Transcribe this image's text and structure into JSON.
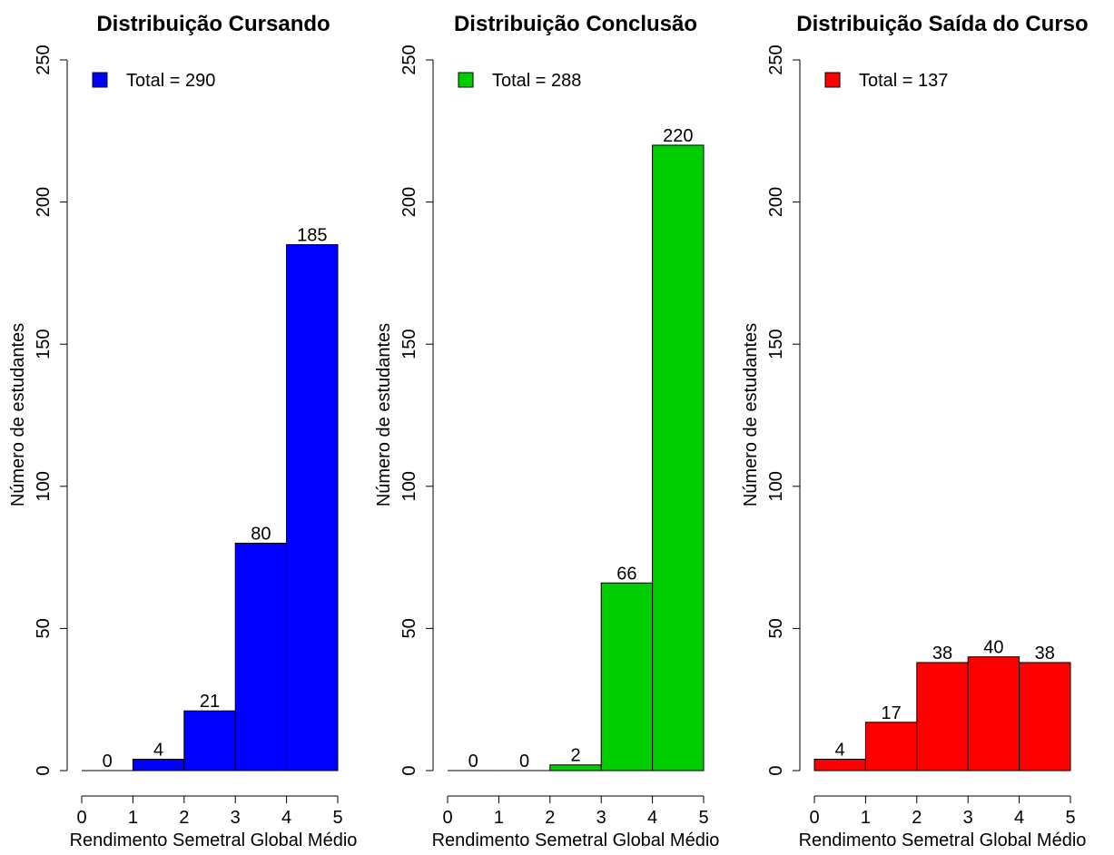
{
  "chart_data": [
    {
      "type": "bar",
      "title": "Distribuição Cursando",
      "xlabel": "Rendimento Semetral Global Médio",
      "ylabel": "Número de estudantes",
      "bins": [
        [
          0,
          1
        ],
        [
          1,
          2
        ],
        [
          2,
          3
        ],
        [
          3,
          4
        ],
        [
          4,
          5
        ]
      ],
      "values": [
        0,
        4,
        21,
        80,
        185
      ],
      "data_labels": [
        "0",
        "4",
        "21",
        "80",
        "185"
      ],
      "xticks": [
        "0",
        "1",
        "2",
        "3",
        "4",
        "5"
      ],
      "yticks": [
        "0",
        "50",
        "100",
        "150",
        "200",
        "250"
      ],
      "xlim": [
        0,
        5
      ],
      "ylim": [
        0,
        250
      ],
      "color": "#0000ff",
      "legend": {
        "label": "Total = 290",
        "position": "top-left"
      },
      "grid": false
    },
    {
      "type": "bar",
      "title": "Distribuição Conclusão",
      "xlabel": "Rendimento Semetral Global Médio",
      "ylabel": "Número de estudantes",
      "bins": [
        [
          0,
          1
        ],
        [
          1,
          2
        ],
        [
          2,
          3
        ],
        [
          3,
          4
        ],
        [
          4,
          5
        ]
      ],
      "values": [
        0,
        0,
        2,
        66,
        220
      ],
      "data_labels": [
        "0",
        "0",
        "2",
        "66",
        "220"
      ],
      "xticks": [
        "0",
        "1",
        "2",
        "3",
        "4",
        "5"
      ],
      "yticks": [
        "0",
        "50",
        "100",
        "150",
        "200",
        "250"
      ],
      "xlim": [
        0,
        5
      ],
      "ylim": [
        0,
        250
      ],
      "color": "#00cd00",
      "legend": {
        "label": "Total = 288",
        "position": "top-left"
      },
      "grid": false
    },
    {
      "type": "bar",
      "title": "Distribuição Saída do Curso",
      "xlabel": "Rendimento Semetral Global Médio",
      "ylabel": "Número de estudantes",
      "bins": [
        [
          0,
          1
        ],
        [
          1,
          2
        ],
        [
          2,
          3
        ],
        [
          3,
          4
        ],
        [
          4,
          5
        ]
      ],
      "values": [
        4,
        17,
        38,
        40,
        38
      ],
      "data_labels": [
        "4",
        "17",
        "38",
        "40",
        "38"
      ],
      "xticks": [
        "0",
        "1",
        "2",
        "3",
        "4",
        "5"
      ],
      "yticks": [
        "0",
        "50",
        "100",
        "150",
        "200",
        "250"
      ],
      "xlim": [
        0,
        5
      ],
      "ylim": [
        0,
        250
      ],
      "color": "#ff0000",
      "legend": {
        "label": "Total = 137",
        "position": "top-left"
      },
      "grid": false
    }
  ]
}
